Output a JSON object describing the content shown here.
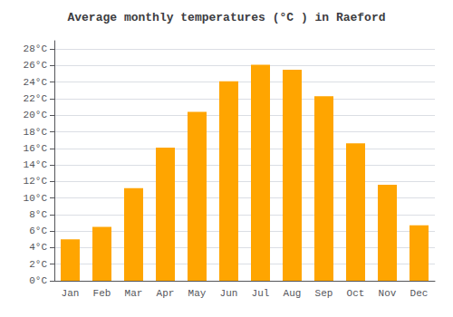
{
  "chart_data": {
    "type": "bar",
    "title": "Average monthly temperatures (°C ) in Raeford",
    "categories": [
      "Jan",
      "Feb",
      "Mar",
      "Apr",
      "May",
      "Jun",
      "Jul",
      "Aug",
      "Sep",
      "Oct",
      "Nov",
      "Dec"
    ],
    "values": [
      5.0,
      6.5,
      11.2,
      16.1,
      20.4,
      24.1,
      26.1,
      25.5,
      22.3,
      16.6,
      11.6,
      6.7
    ],
    "color": "#FFA500",
    "ylim": [
      0,
      29
    ],
    "yticks": [
      {
        "value": 0,
        "label": "0°C"
      },
      {
        "value": 2,
        "label": "2°C"
      },
      {
        "value": 4,
        "label": "4°C"
      },
      {
        "value": 6,
        "label": "6°C"
      },
      {
        "value": 8,
        "label": "8°C"
      },
      {
        "value": 10,
        "label": "10°C"
      },
      {
        "value": 12,
        "label": "12°C"
      },
      {
        "value": 14,
        "label": "14°C"
      },
      {
        "value": 16,
        "label": "16°C"
      },
      {
        "value": 18,
        "label": "18°C"
      },
      {
        "value": 20,
        "label": "20°C"
      },
      {
        "value": 22,
        "label": "22°C"
      },
      {
        "value": 24,
        "label": "24°C"
      },
      {
        "value": 26,
        "label": "26°C"
      },
      {
        "value": 28,
        "label": "28°C"
      }
    ],
    "grid": true
  }
}
